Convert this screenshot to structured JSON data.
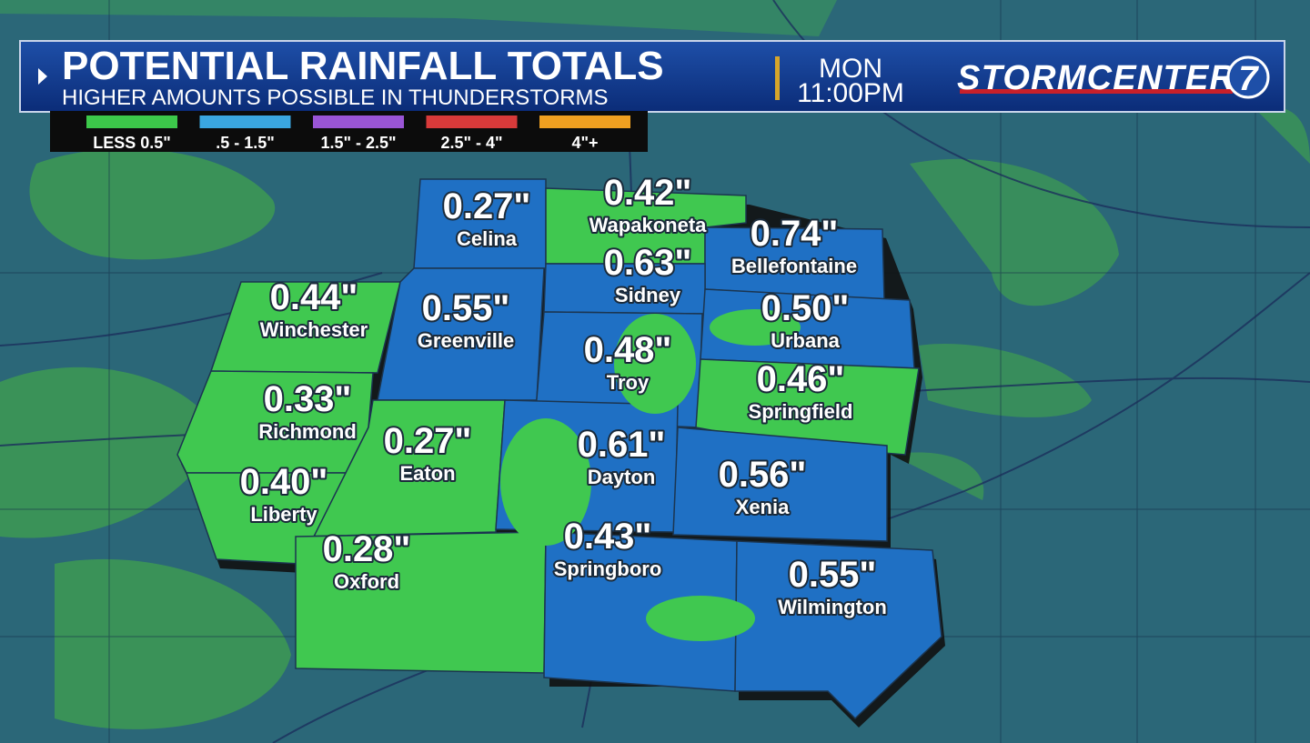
{
  "header": {
    "title": "POTENTIAL RAINFALL TOTALS",
    "subtitle": "HIGHER AMOUNTS POSSIBLE IN THUNDERSTORMS",
    "day": "MON",
    "time": "11:00PM",
    "logo": "STORMCENTER",
    "logo_number": "7"
  },
  "legend": [
    {
      "label": "LESS 0.5\"",
      "color": "#3cc84a"
    },
    {
      "label": ".5 - 1.5\"",
      "color": "#3aa6e0"
    },
    {
      "label": "1.5\" - 2.5\"",
      "color": "#9a55d6"
    },
    {
      "label": "2.5\" - 4\"",
      "color": "#d83a3a"
    },
    {
      "label": "4\"+",
      "color": "#f0a020"
    }
  ],
  "locations": [
    {
      "name": "Celina",
      "amount": "0.27\""
    },
    {
      "name": "Wapakoneta",
      "amount": "0.42\""
    },
    {
      "name": "Bellefontaine",
      "amount": "0.74\""
    },
    {
      "name": "Sidney",
      "amount": "0.63\""
    },
    {
      "name": "Winchester",
      "amount": "0.44\""
    },
    {
      "name": "Greenville",
      "amount": "0.55\""
    },
    {
      "name": "Urbana",
      "amount": "0.50\""
    },
    {
      "name": "Troy",
      "amount": "0.48\""
    },
    {
      "name": "Springfield",
      "amount": "0.46\""
    },
    {
      "name": "Richmond",
      "amount": "0.33\""
    },
    {
      "name": "Eaton",
      "amount": "0.27\""
    },
    {
      "name": "Dayton",
      "amount": "0.61\""
    },
    {
      "name": "Liberty",
      "amount": "0.40\""
    },
    {
      "name": "Xenia",
      "amount": "0.56\""
    },
    {
      "name": "Springboro",
      "amount": "0.43\""
    },
    {
      "name": "Oxford",
      "amount": "0.28\""
    },
    {
      "name": "Wilmington",
      "amount": "0.55\""
    }
  ]
}
